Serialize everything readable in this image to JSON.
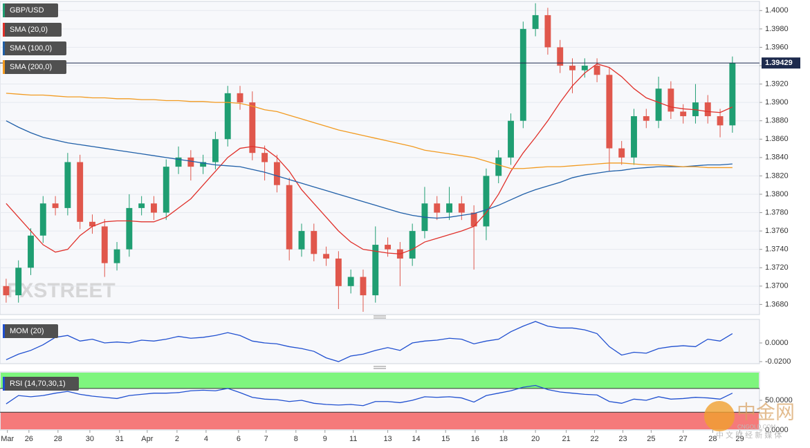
{
  "chart_data": [
    {
      "type": "candlestick",
      "title": "GBP/USD",
      "up_color": "#1f9e72",
      "down_color": "#e0574c",
      "x": [
        0,
        1,
        2,
        3,
        4,
        5,
        6,
        7,
        8,
        9,
        10,
        11,
        12,
        13,
        14,
        15,
        16,
        17,
        18,
        19,
        20,
        21,
        22,
        23,
        24,
        25,
        26,
        27,
        28,
        29,
        30,
        31,
        32,
        33,
        34,
        35,
        36,
        37,
        38,
        39,
        40,
        41,
        42,
        43,
        44,
        45,
        46,
        47,
        48,
        49,
        50,
        51,
        52,
        53,
        54,
        55,
        56,
        57,
        58,
        59
      ],
      "open": [
        1.37,
        1.369,
        1.372,
        1.3755,
        1.379,
        1.3785,
        1.3835,
        1.377,
        1.3765,
        1.3725,
        1.374,
        1.3785,
        1.379,
        1.378,
        1.383,
        1.384,
        1.383,
        1.3835,
        1.386,
        1.391,
        1.39,
        1.3845,
        1.3835,
        1.381,
        1.374,
        1.376,
        1.3735,
        1.373,
        1.37,
        1.371,
        1.369,
        1.3745,
        1.374,
        1.373,
        1.376,
        1.379,
        1.378,
        1.379,
        1.378,
        1.3765,
        1.382,
        1.384,
        1.388,
        1.398,
        1.3995,
        1.396,
        1.394,
        1.3935,
        1.394,
        1.393,
        1.385,
        1.384,
        1.3885,
        1.388,
        1.3915,
        1.389,
        1.3885,
        1.39,
        1.3885,
        1.3875
      ],
      "high": [
        1.3708,
        1.3728,
        1.3763,
        1.3798,
        1.3798,
        1.3845,
        1.3843,
        1.3778,
        1.3773,
        1.3748,
        1.38,
        1.3798,
        1.3798,
        1.3838,
        1.3852,
        1.3848,
        1.3843,
        1.3868,
        1.3918,
        1.3918,
        1.3912,
        1.3853,
        1.3843,
        1.3818,
        1.3768,
        1.3768,
        1.3743,
        1.3738,
        1.3718,
        1.3718,
        1.3765,
        1.3753,
        1.3748,
        1.3768,
        1.3808,
        1.3798,
        1.3808,
        1.3798,
        1.3788,
        1.3828,
        1.3848,
        1.3888,
        1.3988,
        1.4008,
        1.4003,
        1.3968,
        1.3948,
        1.3948,
        1.3948,
        1.3938,
        1.3858,
        1.3893,
        1.3893,
        1.3928,
        1.3923,
        1.3898,
        1.392,
        1.3908,
        1.3893,
        1.395
      ],
      "low": [
        1.3682,
        1.3682,
        1.3712,
        1.3747,
        1.3777,
        1.3777,
        1.3762,
        1.3757,
        1.371,
        1.3717,
        1.3732,
        1.3777,
        1.3772,
        1.3772,
        1.3822,
        1.3815,
        1.3822,
        1.3827,
        1.3852,
        1.3892,
        1.3837,
        1.3815,
        1.3802,
        1.3728,
        1.3732,
        1.3727,
        1.3722,
        1.3675,
        1.3692,
        1.3672,
        1.3682,
        1.3732,
        1.37,
        1.3722,
        1.3752,
        1.3772,
        1.3772,
        1.3772,
        1.3718,
        1.375,
        1.3812,
        1.3832,
        1.3872,
        1.3972,
        1.3952,
        1.3932,
        1.391,
        1.3927,
        1.3922,
        1.3825,
        1.3832,
        1.3832,
        1.3872,
        1.3872,
        1.3882,
        1.3877,
        1.3877,
        1.3877,
        1.3862,
        1.3867
      ],
      "close": [
        1.369,
        1.372,
        1.3755,
        1.379,
        1.3785,
        1.3835,
        1.377,
        1.3765,
        1.3725,
        1.374,
        1.3785,
        1.379,
        1.378,
        1.383,
        1.384,
        1.383,
        1.3835,
        1.386,
        1.391,
        1.39,
        1.3845,
        1.3835,
        1.381,
        1.374,
        1.376,
        1.3735,
        1.373,
        1.37,
        1.371,
        1.369,
        1.3745,
        1.374,
        1.373,
        1.376,
        1.379,
        1.378,
        1.379,
        1.378,
        1.3765,
        1.382,
        1.384,
        1.388,
        1.398,
        1.3995,
        1.396,
        1.394,
        1.3935,
        1.394,
        1.393,
        1.385,
        1.384,
        1.3885,
        1.388,
        1.3915,
        1.389,
        1.3885,
        1.39,
        1.3885,
        1.3875,
        1.3943
      ],
      "series": [
        {
          "name": "SMA (20,0)",
          "color": "#e0302a",
          "values": [
            1.379,
            1.3775,
            1.376,
            1.3745,
            1.3737,
            1.374,
            1.3755,
            1.3765,
            1.377,
            1.3771,
            1.3771,
            1.377,
            1.377,
            1.3775,
            1.3785,
            1.3795,
            1.381,
            1.3825,
            1.384,
            1.385,
            1.3852,
            1.385,
            1.384,
            1.3825,
            1.3805,
            1.379,
            1.3775,
            1.376,
            1.3748,
            1.374,
            1.3738,
            1.3736,
            1.3735,
            1.374,
            1.3748,
            1.3752,
            1.3756,
            1.376,
            1.3765,
            1.378,
            1.38,
            1.3825,
            1.3845,
            1.3862,
            1.388,
            1.39,
            1.3918,
            1.3932,
            1.3942,
            1.3938,
            1.3928,
            1.3915,
            1.3905,
            1.39,
            1.3895,
            1.3893,
            1.3892,
            1.389,
            1.3889,
            1.3895
          ]
        },
        {
          "name": "SMA (100,0)",
          "color": "#1f5fa8",
          "values": [
            1.388,
            1.3873,
            1.3867,
            1.3862,
            1.3859,
            1.3856,
            1.3854,
            1.3852,
            1.385,
            1.3848,
            1.3846,
            1.3844,
            1.3842,
            1.384,
            1.3838,
            1.3836,
            1.3834,
            1.3832,
            1.3831,
            1.383,
            1.3827,
            1.3824,
            1.382,
            1.3816,
            1.3812,
            1.3808,
            1.3804,
            1.38,
            1.3796,
            1.3792,
            1.3788,
            1.3784,
            1.378,
            1.3777,
            1.3775,
            1.3774,
            1.3775,
            1.3777,
            1.3779,
            1.3783,
            1.3788,
            1.3794,
            1.38,
            1.3805,
            1.3809,
            1.3813,
            1.3818,
            1.3821,
            1.3823,
            1.3825,
            1.3826,
            1.3828,
            1.3829,
            1.383,
            1.383,
            1.383,
            1.3831,
            1.3832,
            1.3832,
            1.3833
          ]
        },
        {
          "name": "SMA (200,0)",
          "color": "#f29a1f",
          "values": [
            1.391,
            1.3909,
            1.3908,
            1.3908,
            1.3907,
            1.3906,
            1.3906,
            1.3905,
            1.3905,
            1.3904,
            1.3904,
            1.3903,
            1.3903,
            1.3902,
            1.3902,
            1.3901,
            1.3901,
            1.39,
            1.39,
            1.3899,
            1.3896,
            1.3892,
            1.389,
            1.3886,
            1.3882,
            1.3878,
            1.3874,
            1.387,
            1.3867,
            1.3864,
            1.3861,
            1.3858,
            1.3855,
            1.3852,
            1.3848,
            1.3846,
            1.3844,
            1.3842,
            1.384,
            1.3836,
            1.3832,
            1.3828,
            1.3828,
            1.3829,
            1.383,
            1.383,
            1.3831,
            1.3832,
            1.3833,
            1.3834,
            1.3834,
            1.3833,
            1.3832,
            1.3832,
            1.3831,
            1.383,
            1.383,
            1.3829,
            1.3829,
            1.3829
          ]
        }
      ],
      "last_price": {
        "value": 1.39429,
        "label": "1.39429"
      },
      "xlim": [
        -0.5,
        61.2
      ],
      "ylim": [
        1.3669,
        1.401
      ],
      "yticks": [
        {
          "value": 1.368,
          "label": "1.3680"
        },
        {
          "value": 1.37,
          "label": "1.3700"
        },
        {
          "value": 1.372,
          "label": "1.3720"
        },
        {
          "value": 1.374,
          "label": "1.3740"
        },
        {
          "value": 1.376,
          "label": "1.3760"
        },
        {
          "value": 1.378,
          "label": "1.3780"
        },
        {
          "value": 1.38,
          "label": "1.3800"
        },
        {
          "value": 1.382,
          "label": "1.3820"
        },
        {
          "value": 1.384,
          "label": "1.3840"
        },
        {
          "value": 1.386,
          "label": "1.3860"
        },
        {
          "value": 1.388,
          "label": "1.3880"
        },
        {
          "value": 1.39,
          "label": "1.3900"
        },
        {
          "value": 1.392,
          "label": "1.3920"
        },
        {
          "value": 1.394,
          "label": "1.3940"
        },
        {
          "value": 1.396,
          "label": "1.3960"
        },
        {
          "value": 1.398,
          "label": "1.3980"
        },
        {
          "value": 1.4,
          "label": "1.4000"
        }
      ],
      "grid": true,
      "watermark": "FXSTREET"
    },
    {
      "type": "line",
      "title": "MOM (20)",
      "x": [
        0,
        1,
        2,
        3,
        4,
        5,
        6,
        7,
        8,
        9,
        10,
        11,
        12,
        13,
        14,
        15,
        16,
        17,
        18,
        19,
        20,
        21,
        22,
        23,
        24,
        25,
        26,
        27,
        28,
        29,
        30,
        31,
        32,
        33,
        34,
        35,
        36,
        37,
        38,
        39,
        40,
        41,
        42,
        43,
        44,
        45,
        46,
        47,
        48,
        49,
        50,
        51,
        52,
        53,
        54,
        55,
        56,
        57,
        58,
        59
      ],
      "series": [
        {
          "name": "MOM (20)",
          "color": "#1f4fd0",
          "values": [
            -0.018,
            -0.012,
            -0.008,
            -0.002,
            0.006,
            0.008,
            0.002,
            0.004,
            0.0,
            0.001,
            0.0,
            0.003,
            0.002,
            0.004,
            0.007,
            0.005,
            0.006,
            0.008,
            0.011,
            0.008,
            0.002,
            0.0,
            -0.001,
            -0.004,
            -0.006,
            -0.009,
            -0.016,
            -0.02,
            -0.014,
            -0.012,
            -0.008,
            -0.005,
            -0.008,
            0.0,
            0.002,
            0.003,
            0.005,
            0.004,
            -0.001,
            0.002,
            0.004,
            0.012,
            0.018,
            0.023,
            0.018,
            0.016,
            0.016,
            0.014,
            0.01,
            -0.004,
            -0.013,
            -0.01,
            -0.011,
            -0.006,
            -0.004,
            -0.003,
            -0.004,
            0.004,
            0.002,
            0.01
          ]
        }
      ],
      "xlim": [
        -0.5,
        61.2
      ],
      "ylim": [
        -0.0222,
        0.0252
      ],
      "yticks": [
        {
          "value": 0,
          "label": "0.0000"
        },
        {
          "value": -0.02,
          "label": "-0.0200"
        }
      ]
    },
    {
      "type": "line",
      "title": "RSI (14,70,30,1)",
      "x": [
        0,
        1,
        2,
        3,
        4,
        5,
        6,
        7,
        8,
        9,
        10,
        11,
        12,
        13,
        14,
        15,
        16,
        17,
        18,
        19,
        20,
        21,
        22,
        23,
        24,
        25,
        26,
        27,
        28,
        29,
        30,
        31,
        32,
        33,
        34,
        35,
        36,
        37,
        38,
        39,
        40,
        41,
        42,
        43,
        44,
        45,
        46,
        47,
        48,
        49,
        50,
        51,
        52,
        53,
        54,
        55,
        56,
        57,
        58,
        59
      ],
      "series": [
        {
          "name": "RSI (14,70,30,1)",
          "color": "#1f4fd0",
          "values": [
            44,
            58,
            56,
            58,
            62,
            65,
            60,
            57,
            55,
            53,
            58,
            60,
            62,
            62,
            63,
            66,
            67,
            66,
            70,
            63,
            55,
            52,
            51,
            48,
            50,
            45,
            43,
            42,
            43,
            41,
            48,
            48,
            46,
            50,
            56,
            55,
            56,
            54,
            47,
            58,
            62,
            66,
            72,
            75,
            68,
            64,
            62,
            60,
            59,
            48,
            45,
            52,
            50,
            56,
            52,
            53,
            55,
            54,
            52,
            62
          ]
        }
      ],
      "overbought": 70,
      "oversold": 30,
      "overbought_color": "#7ef57e",
      "oversold_color": "#f57a7a",
      "xlim": [
        -0.5,
        61.2
      ],
      "ylim": [
        0,
        97.7
      ],
      "yticks": [
        {
          "value": 50,
          "label": "50.0000"
        },
        {
          "value": 0,
          "label": "0.0000"
        }
      ],
      "xticks": [
        {
          "value": 0.1,
          "label": "Mar"
        },
        {
          "value": 1.85,
          "label": "26"
        },
        {
          "value": 4.21,
          "label": "28"
        },
        {
          "value": 6.8,
          "label": "30"
        },
        {
          "value": 9.21,
          "label": "31"
        },
        {
          "value": 11.46,
          "label": "Apr"
        },
        {
          "value": 13.88,
          "label": "2"
        },
        {
          "value": 16.24,
          "label": "4"
        },
        {
          "value": 18.88,
          "label": "6"
        },
        {
          "value": 21.12,
          "label": "7"
        },
        {
          "value": 23.54,
          "label": "8"
        },
        {
          "value": 25.9,
          "label": "9"
        },
        {
          "value": 28.2,
          "label": "11"
        },
        {
          "value": 31.0,
          "label": "13"
        },
        {
          "value": 33.3,
          "label": "14"
        },
        {
          "value": 35.7,
          "label": "15"
        },
        {
          "value": 38.1,
          "label": "16"
        },
        {
          "value": 40.4,
          "label": "18"
        },
        {
          "value": 43.0,
          "label": "20"
        },
        {
          "value": 45.5,
          "label": "21"
        },
        {
          "value": 47.8,
          "label": "22"
        },
        {
          "value": 50.1,
          "label": "23"
        },
        {
          "value": 52.4,
          "label": "25"
        },
        {
          "value": 55.0,
          "label": "27"
        },
        {
          "value": 57.4,
          "label": "28"
        },
        {
          "value": 59.6,
          "label": "29"
        }
      ]
    }
  ],
  "watermark": {
    "logo": "中金网",
    "site": "CNGOLD.COM",
    "tagline": "中 文 财 经 新 媒 体"
  }
}
